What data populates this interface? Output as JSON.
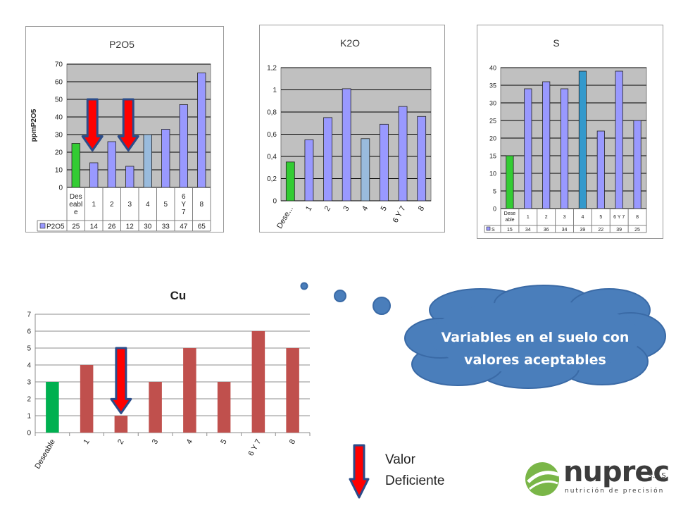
{
  "chart_data": [
    {
      "id": "p2o5",
      "type": "bar",
      "title": "P2O5",
      "ylabel": "ppmP2O5",
      "ylim": [
        0,
        70
      ],
      "yticks": [
        0,
        10,
        20,
        30,
        40,
        50,
        60,
        70
      ],
      "grid": true,
      "categories": [
        "Des eabl e",
        "1",
        "2",
        "3",
        "4",
        "5",
        "6 Y 7",
        "8"
      ],
      "series": [
        {
          "name": "P2O5",
          "values": [
            25,
            14,
            26,
            12,
            30,
            33,
            47,
            65
          ]
        }
      ],
      "data_table": true,
      "bar_colors": [
        "#33cc33",
        "#9999ff",
        "#9999ff",
        "#9999ff",
        "#99bbdd",
        "#9999ff",
        "#9999ff",
        "#9999ff"
      ],
      "deficient_markers": [
        "1",
        "3"
      ]
    },
    {
      "id": "k2o",
      "type": "bar",
      "title": "K2O",
      "ylim": [
        0,
        1.2
      ],
      "yticks": [
        "0",
        "0,2",
        "0,4",
        "0,6",
        "0,8",
        "1",
        "1,2"
      ],
      "grid": true,
      "categories": [
        "Dese...",
        "1",
        "2",
        "3",
        "4",
        "5",
        "6 Y 7",
        "8"
      ],
      "values": [
        0.35,
        0.55,
        0.75,
        1.01,
        0.56,
        0.69,
        0.85,
        0.76
      ],
      "bar_colors": [
        "#33cc33",
        "#9999ff",
        "#9999ff",
        "#9999ff",
        "#99bbdd",
        "#9999ff",
        "#9999ff",
        "#9999ff"
      ]
    },
    {
      "id": "s",
      "type": "bar",
      "title": "S",
      "ylim": [
        0,
        40
      ],
      "yticks": [
        0,
        5,
        10,
        15,
        20,
        25,
        30,
        35,
        40
      ],
      "grid": true,
      "categories": [
        "Dese able",
        "1",
        "2",
        "3",
        "4",
        "5",
        "6 Y 7",
        "8"
      ],
      "series": [
        {
          "name": "S",
          "values": [
            15,
            34,
            36,
            34,
            39,
            22,
            39,
            25
          ]
        }
      ],
      "data_table": true,
      "bar_colors": [
        "#33cc33",
        "#9999ff",
        "#9999ff",
        "#9999ff",
        "#3399cc",
        "#9999ff",
        "#9999ff",
        "#9999ff"
      ]
    },
    {
      "id": "cu",
      "type": "bar",
      "title": "Cu",
      "ylim": [
        0,
        7
      ],
      "yticks": [
        0,
        1,
        2,
        3,
        4,
        5,
        6,
        7
      ],
      "grid": true,
      "categories": [
        "Deseable",
        "1",
        "2",
        "3",
        "4",
        "5",
        "6 Y 7",
        "8"
      ],
      "values": [
        3,
        4,
        1,
        3,
        5,
        3,
        6,
        5
      ],
      "bar_colors": [
        "#00b050",
        "#c0504d",
        "#c0504d",
        "#c0504d",
        "#c0504d",
        "#c0504d",
        "#c0504d",
        "#c0504d"
      ],
      "deficient_markers": [
        "2"
      ]
    }
  ],
  "thought_bubble": {
    "line1": "Variables en el suelo con",
    "line2": "valores aceptables",
    "color": "#4a7ebb"
  },
  "legend": {
    "line1": "Valor",
    "line2": "Deficiente",
    "icon": "red-down-arrow-icon"
  },
  "logo": {
    "name": "nuprec",
    "suffix": "S.A.S.",
    "tagline": "nutrición de precisión",
    "colors": {
      "dark": "#3c3c3c",
      "green": "#7ab648"
    }
  }
}
